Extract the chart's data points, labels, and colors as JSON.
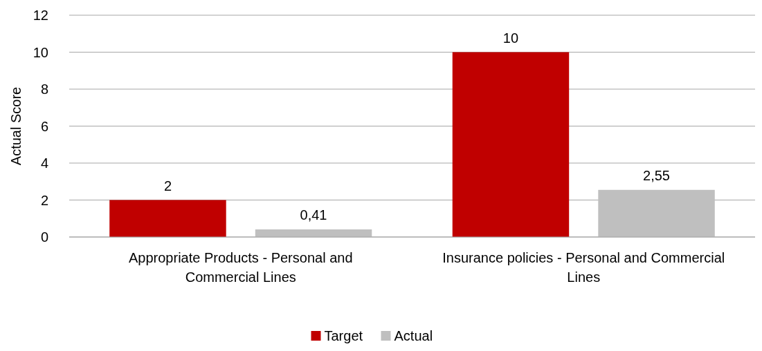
{
  "chart_data": {
    "type": "bar",
    "ylabel": "Actual Score",
    "categories": [
      "Appropriate Products - Personal and Commercial Lines",
      "Insurance policies - Personal and Commercial Lines"
    ],
    "series": [
      {
        "name": "Target",
        "color": "#c00000",
        "values": [
          2,
          10
        ],
        "value_labels": [
          "2",
          "10"
        ]
      },
      {
        "name": "Actual",
        "color": "#bfbfbf",
        "values": [
          0.41,
          2.55
        ],
        "value_labels": [
          "0,41",
          "2,55"
        ]
      }
    ],
    "ylim": [
      0,
      12
    ],
    "yticks": [
      0,
      2,
      4,
      6,
      8,
      10,
      12
    ],
    "grid": "y",
    "legend": "bottom"
  }
}
